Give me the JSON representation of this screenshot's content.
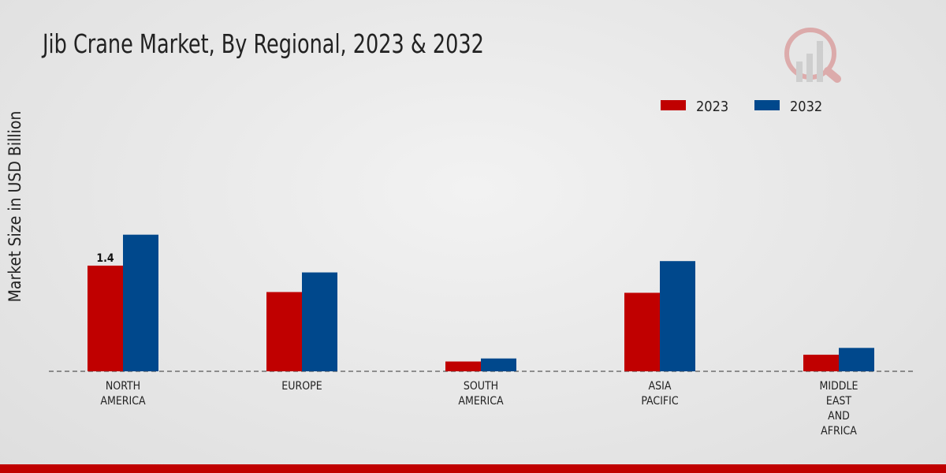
{
  "chart_data": {
    "type": "bar",
    "title": "Jib Crane Market, By Regional, 2023 & 2032",
    "xlabel": "",
    "ylabel": "Market Size in USD Billion",
    "ylim": [
      0,
      4.0
    ],
    "grid": false,
    "legend_position": "top-right",
    "categories": [
      [
        "NORTH",
        "AMERICA"
      ],
      [
        "EUROPE"
      ],
      [
        "SOUTH",
        "AMERICA"
      ],
      [
        "ASIA",
        "PACIFIC"
      ],
      [
        "MIDDLE",
        "EAST",
        "AND",
        "AFRICA"
      ]
    ],
    "series": [
      {
        "name": "2023",
        "color": "#c00000",
        "values": [
          1.4,
          1.05,
          0.13,
          1.04,
          0.22
        ]
      },
      {
        "name": "2032",
        "color": "#00488c",
        "values": [
          1.81,
          1.31,
          0.17,
          1.46,
          0.31
        ]
      }
    ],
    "annotations": [
      {
        "category_index": 0,
        "series_index": 0,
        "text": "1.4"
      }
    ]
  }
}
